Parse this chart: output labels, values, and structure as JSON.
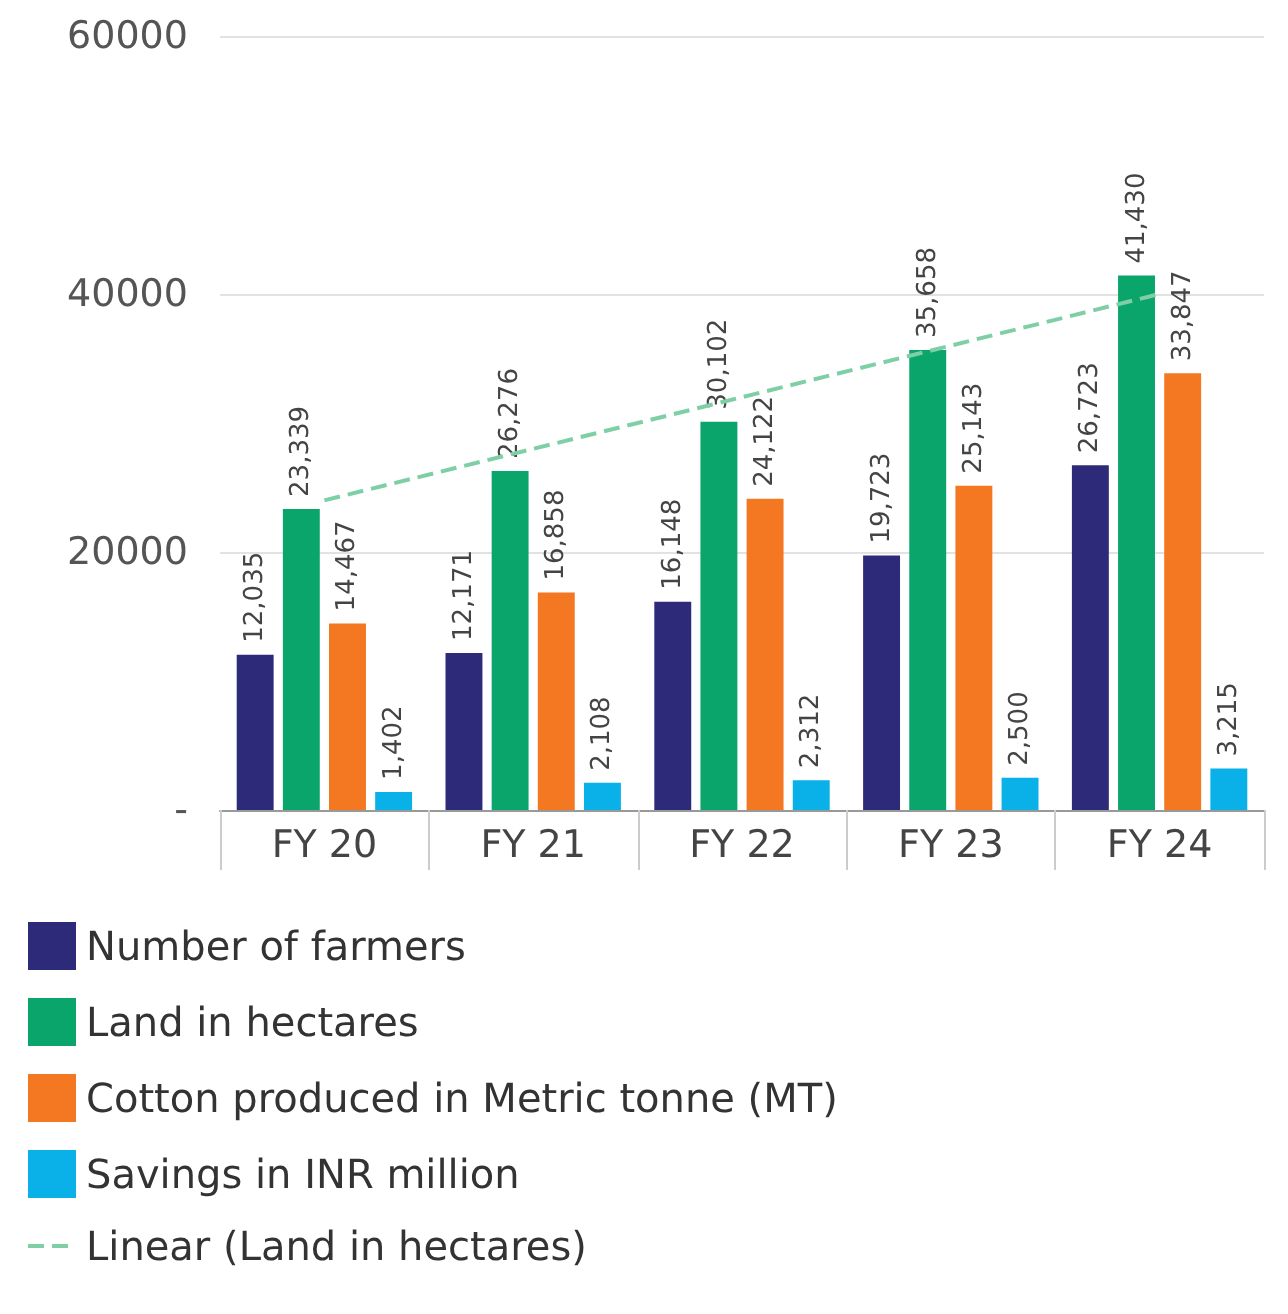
{
  "chart_data": {
    "type": "bar",
    "categories": [
      "FY 20",
      "FY 21",
      "FY 22",
      "FY 23",
      "FY 24"
    ],
    "series": [
      {
        "name": "Number of farmers",
        "color": "#2e2a7a",
        "values": [
          12035,
          12171,
          16148,
          19723,
          26723
        ],
        "value_labels": [
          "12,035",
          "12,171",
          "16,148",
          "19,723",
          "26,723"
        ]
      },
      {
        "name": "Land in hectares",
        "color": "#0aa56b",
        "values": [
          23339,
          26276,
          30102,
          35658,
          41430
        ],
        "value_labels": [
          "23,339",
          "26,276",
          "30,102",
          "35,658",
          "41,430"
        ]
      },
      {
        "name": "Cotton produced in Metric tonne (MT)",
        "color": "#f47721",
        "values": [
          14467,
          16858,
          24122,
          25143,
          33847
        ],
        "value_labels": [
          "14,467",
          "16,858",
          "24,122",
          "25,143",
          "33,847"
        ]
      },
      {
        "name": "Savings in INR million",
        "color": "#0ab0e8",
        "values": [
          1402,
          2108,
          2312,
          2500,
          3215
        ],
        "value_labels": [
          "1,402",
          "2,108",
          "2,312",
          "2,500",
          "3,215"
        ]
      },
      {
        "name": "Linear (Land in hectares)",
        "type": "line",
        "color": "#7fcfa6",
        "line_style": "dashed",
        "marker": "none",
        "values": [
          24000,
          28000,
          32000,
          36000,
          40000
        ]
      }
    ],
    "ylim": [
      0,
      60000
    ],
    "yticks": [
      {
        "value": 0,
        "label": "-"
      },
      20000,
      40000,
      60000
    ],
    "grid": "y",
    "legend": "bottom"
  }
}
